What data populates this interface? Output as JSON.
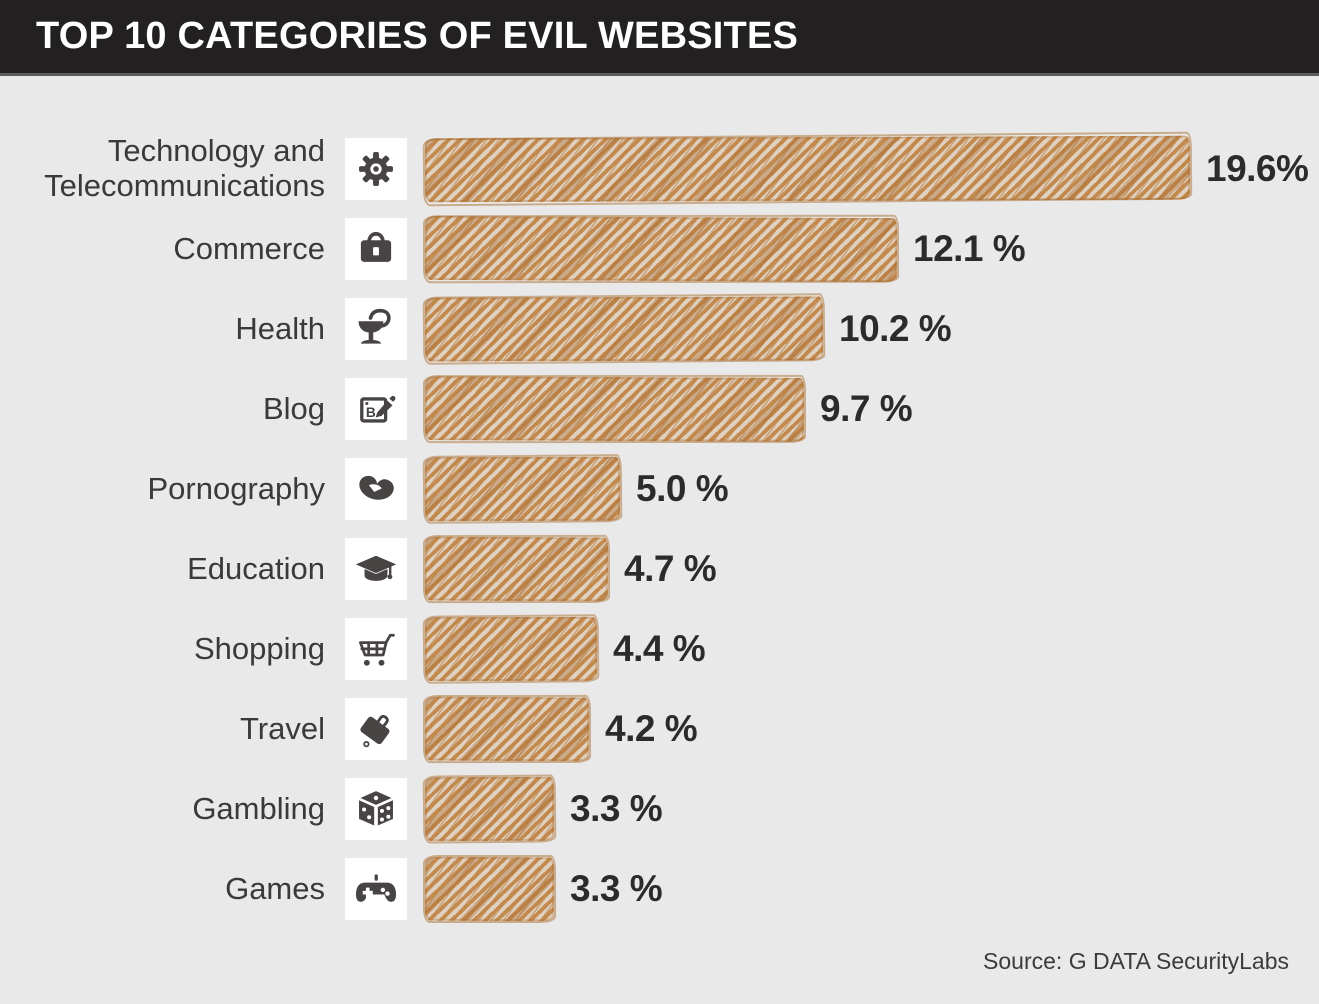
{
  "title": "TOP 10 CATEGORIES OF EVIL WEBSITES",
  "source": "Source: G DATA SecurityLabs",
  "colors": {
    "title_bar_background": "#232021",
    "title_text": "#ffffff",
    "page_background": "#e9e9e9",
    "bar_hatch_orange": "#c28647",
    "bar_hatch_orange_dark": "#a86f33",
    "icon_box_background": "#ffffff",
    "icon_glyph": "#474443",
    "label_text": "#3a3a3a",
    "value_text": "#2b2b2b"
  },
  "chart_data": {
    "type": "bar",
    "orientation": "horizontal",
    "title": "TOP 10 CATEGORIES OF EVIL WEBSITES",
    "source": "Source: G DATA SecurityLabs",
    "unit": "%",
    "xlim": [
      0,
      20
    ],
    "grid": false,
    "legend": false,
    "style": "hand-drawn hatched bars",
    "categories": [
      "Technology and Telecommunications",
      "Commerce",
      "Health",
      "Blog",
      "Pornography",
      "Education",
      "Shopping",
      "Travel",
      "Gambling",
      "Games"
    ],
    "values": [
      19.6,
      12.1,
      10.2,
      9.7,
      5.0,
      4.7,
      4.4,
      4.2,
      3.3,
      3.3
    ],
    "rows": [
      {
        "label": "Technology and Telecommunications",
        "icon": "gear-icon",
        "value": 19.6,
        "value_label": "19.6%"
      },
      {
        "label": "Commerce",
        "icon": "briefcase-icon",
        "value": 12.1,
        "value_label": "12.1 %"
      },
      {
        "label": "Health",
        "icon": "pharmacy-snake-icon",
        "value": 10.2,
        "value_label": "10.2 %"
      },
      {
        "label": "Blog",
        "icon": "blog-pencil-icon",
        "value": 9.7,
        "value_label": "9.7 %"
      },
      {
        "label": "Pornography",
        "icon": "lips-icon",
        "value": 5.0,
        "value_label": "5.0 %"
      },
      {
        "label": "Education",
        "icon": "graduation-cap-icon",
        "value": 4.7,
        "value_label": "4.7 %"
      },
      {
        "label": "Shopping",
        "icon": "shopping-cart-icon",
        "value": 4.4,
        "value_label": "4.4 %"
      },
      {
        "label": "Travel",
        "icon": "suitcase-icon",
        "value": 4.2,
        "value_label": "4.2 %"
      },
      {
        "label": "Gambling",
        "icon": "dice-icon",
        "value": 3.3,
        "value_label": "3.3 %"
      },
      {
        "label": "Games",
        "icon": "gamepad-icon",
        "value": 3.3,
        "value_label": "3.3 %"
      }
    ]
  }
}
